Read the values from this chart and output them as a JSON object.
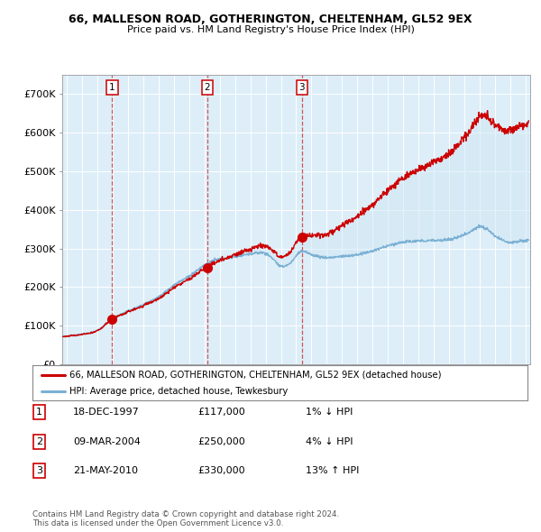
{
  "title_line1": "66, MALLESON ROAD, GOTHERINGTON, CHELTENHAM, GL52 9EX",
  "title_line2": "Price paid vs. HM Land Registry's House Price Index (HPI)",
  "xlim_start": 1994.7,
  "xlim_end": 2025.3,
  "ylim_bottom": 0,
  "ylim_top": 750000,
  "yticks": [
    0,
    100000,
    200000,
    300000,
    400000,
    500000,
    600000,
    700000
  ],
  "ytick_labels": [
    "£0",
    "£100K",
    "£200K",
    "£300K",
    "£400K",
    "£500K",
    "£600K",
    "£700K"
  ],
  "sale_dates": [
    1997.96,
    2004.18,
    2010.38
  ],
  "sale_prices": [
    117000,
    250000,
    330000
  ],
  "sale_labels": [
    "1",
    "2",
    "3"
  ],
  "red_line_color": "#cc0000",
  "blue_line_color": "#7ab0d4",
  "blue_fill_color": "#d0e8f5",
  "dashed_line_color": "#cc4444",
  "legend_label_red": "66, MALLESON ROAD, GOTHERINGTON, CHELTENHAM, GL52 9EX (detached house)",
  "legend_label_blue": "HPI: Average price, detached house, Tewkesbury",
  "table_rows": [
    {
      "num": "1",
      "date": "18-DEC-1997",
      "price": "£117,000",
      "hpi": "1% ↓ HPI"
    },
    {
      "num": "2",
      "date": "09-MAR-2004",
      "price": "£250,000",
      "hpi": "4% ↓ HPI"
    },
    {
      "num": "3",
      "date": "21-MAY-2010",
      "price": "£330,000",
      "hpi": "13% ↑ HPI"
    }
  ],
  "footnote": "Contains HM Land Registry data © Crown copyright and database right 2024.\nThis data is licensed under the Open Government Licence v3.0.",
  "background_color": "#ffffff",
  "plot_bg_color": "#ddeef8",
  "grid_color": "#ffffff"
}
